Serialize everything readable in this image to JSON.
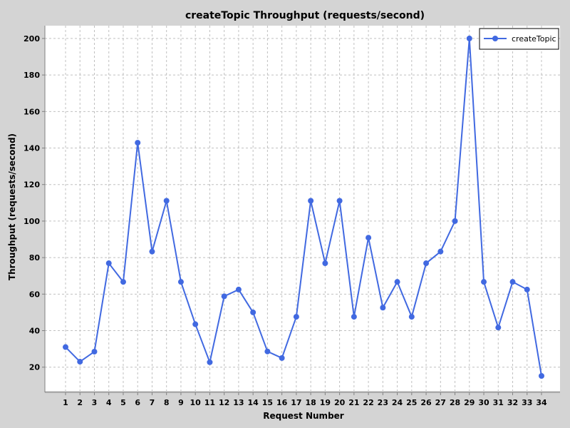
{
  "chart_data": {
    "type": "line",
    "title": "createTopic Throughput (requests/second)",
    "xlabel": "Request Number",
    "ylabel": "Throughput (requests/second)",
    "ylim": [
      7,
      207
    ],
    "yticks": [
      20,
      40,
      60,
      80,
      100,
      120,
      140,
      160,
      180,
      200
    ],
    "grid": true,
    "legend_position": "top-right",
    "x": [
      1,
      2,
      3,
      4,
      5,
      6,
      7,
      8,
      9,
      10,
      11,
      12,
      13,
      14,
      15,
      16,
      17,
      18,
      19,
      20,
      21,
      22,
      23,
      24,
      25,
      26,
      27,
      28,
      29,
      30,
      31,
      32,
      33,
      34
    ],
    "series": [
      {
        "name": "createTopic",
        "color": "#4169e1",
        "values": [
          31,
          23,
          28.5,
          76.9,
          66.7,
          142.9,
          83.3,
          111.1,
          66.7,
          43.5,
          22.7,
          58.8,
          62.5,
          50,
          28.6,
          25,
          47.6,
          111.1,
          76.9,
          111.1,
          47.6,
          90.9,
          52.6,
          66.7,
          47.6,
          76.9,
          83.3,
          100,
          200,
          66.7,
          41.7,
          66.7,
          62.5,
          15.2
        ]
      }
    ]
  }
}
